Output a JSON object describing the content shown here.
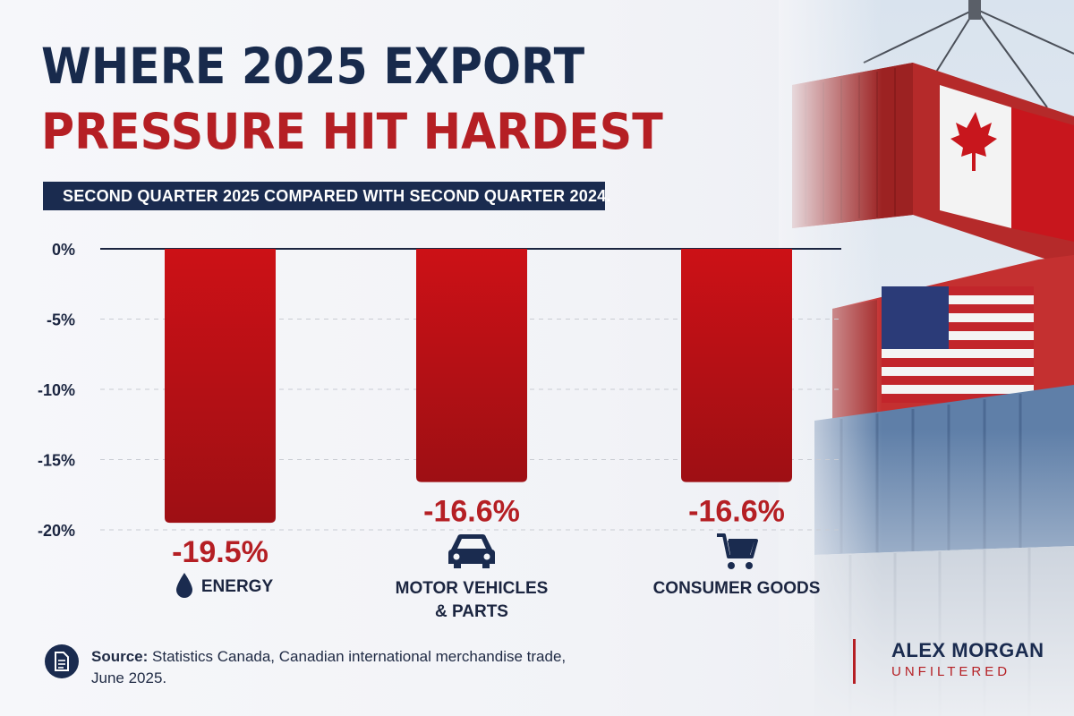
{
  "title_line1": "WHERE 2025 EXPORT",
  "title_line2": "PRESSURE HIT HARDEST",
  "subtitle": "SECOND QUARTER 2025 COMPARED WITH SECOND QUARTER 2024.",
  "colors": {
    "navy": "#1a2b4f",
    "red": "#b51f24",
    "bar_top": "#cc1116",
    "bar_bottom": "#9e0f14"
  },
  "chart_data": {
    "type": "bar",
    "categories": [
      "ENERGY",
      "MOTOR VEHICLES & PARTS",
      "CONSUMER GOODS"
    ],
    "category_lines": [
      [
        "ENERGY"
      ],
      [
        "MOTOR VEHICLES",
        "& PARTS"
      ],
      [
        "CONSUMER GOODS"
      ]
    ],
    "category_icons": [
      "droplet-icon",
      "car-icon",
      "shopping-cart-icon"
    ],
    "values": [
      -19.5,
      -16.6,
      -16.6
    ],
    "value_labels": [
      "-19.5%",
      "-16.6%",
      "-16.6%"
    ],
    "yticks": [
      0,
      -5,
      -10,
      -15,
      -20
    ],
    "ytick_labels": [
      "0%",
      "-5%",
      "-10%",
      "-15%",
      "-20%"
    ],
    "ylim": [
      -20,
      0
    ],
    "grid": true
  },
  "source": {
    "label": "Source:",
    "text": " Statistics Canada, Canadian international merchandise trade, June 2025."
  },
  "brand": {
    "name": "ALEX MORGAN",
    "tagline": "UNFILTERED"
  },
  "photo_description_icons": [
    "shipping-container-icon"
  ]
}
